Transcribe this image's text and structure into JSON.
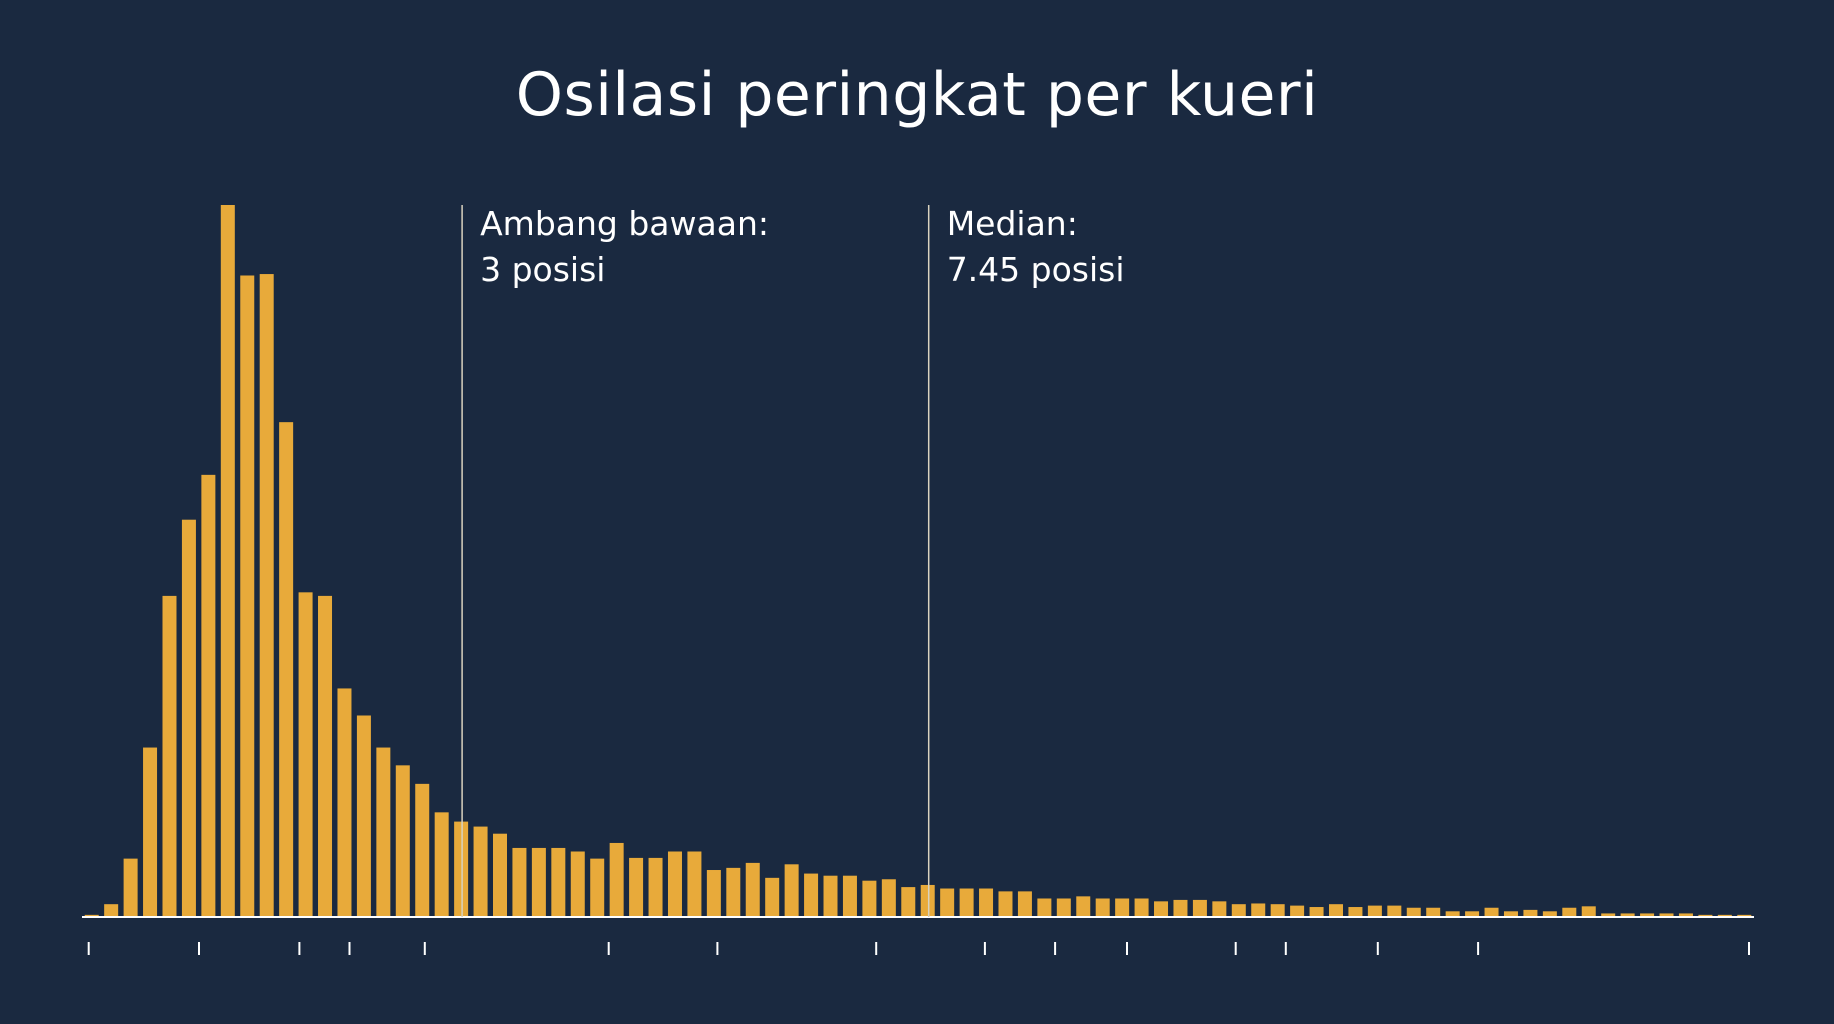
{
  "chart_data": {
    "type": "bar",
    "title": "Osilasi peringkat per kueri",
    "xlabel": "",
    "ylabel": "",
    "ylim": [
      0,
      100
    ],
    "values": [
      0.3,
      1.8,
      8.2,
      23.8,
      45.1,
      55.8,
      62.1,
      100,
      90.1,
      90.3,
      69.5,
      45.6,
      45.1,
      32.1,
      28.3,
      23.8,
      21.3,
      18.7,
      14.7,
      13.4,
      12.7,
      11.7,
      9.7,
      9.7,
      9.7,
      9.2,
      8.2,
      10.4,
      8.3,
      8.3,
      9.2,
      9.2,
      6.6,
      6.9,
      7.6,
      5.5,
      7.4,
      6.1,
      5.8,
      5.8,
      5.1,
      5.3,
      4.2,
      4.5,
      4.0,
      4.0,
      4.0,
      3.6,
      3.6,
      2.6,
      2.6,
      2.9,
      2.6,
      2.6,
      2.6,
      2.2,
      2.4,
      2.4,
      2.2,
      1.8,
      1.9,
      1.8,
      1.6,
      1.4,
      1.8,
      1.4,
      1.6,
      1.6,
      1.3,
      1.3,
      0.8,
      0.8,
      1.3,
      0.8,
      1.0,
      0.8,
      1.3,
      1.5,
      0.5,
      0.5,
      0.5,
      0.5,
      0.5,
      0.3,
      0.3,
      0.3
    ],
    "bar_color": "#e8aa3a",
    "background": "#1a2940",
    "axis_color": "#ffffff",
    "grid": false,
    "tick_count": 14,
    "annotations": [
      {
        "id": "default-threshold",
        "label": "Ambang bawaan:",
        "value_text": "3 posisi",
        "bar_index": 19
      },
      {
        "id": "median",
        "label": "Median:",
        "value_text": "7.45 posisi",
        "bar_index": 43
      }
    ]
  }
}
